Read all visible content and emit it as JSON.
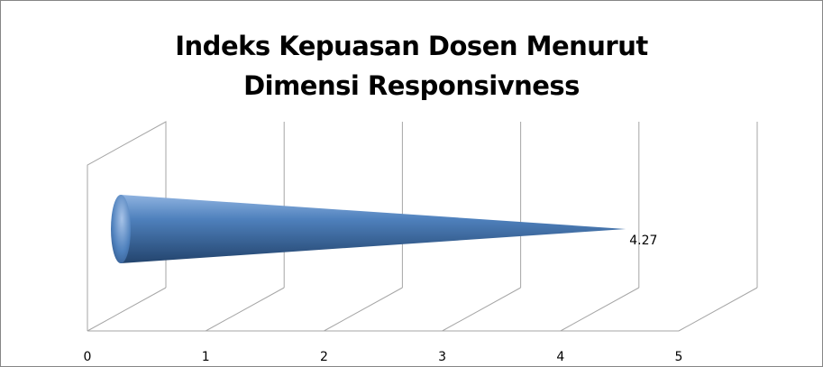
{
  "chart_data": {
    "type": "bar",
    "bar_shape": "cone",
    "orientation": "horizontal",
    "title_lines": [
      "Indeks Kepuasan Dosen Menurut",
      "Dimensi Responsivness"
    ],
    "categories": [
      ""
    ],
    "values": [
      4.27
    ],
    "data_labels": [
      "4.27"
    ],
    "xlim": [
      0,
      5
    ],
    "x_ticks": [
      "0",
      "1",
      "2",
      "3",
      "4",
      "5"
    ],
    "grid": true,
    "legend": "none",
    "colors": {
      "bar_light": "#8fb3e0",
      "bar_mid": "#4f81bd",
      "bar_dark": "#23446d",
      "grid": "#a6a6a6",
      "frame": "#868686"
    }
  }
}
